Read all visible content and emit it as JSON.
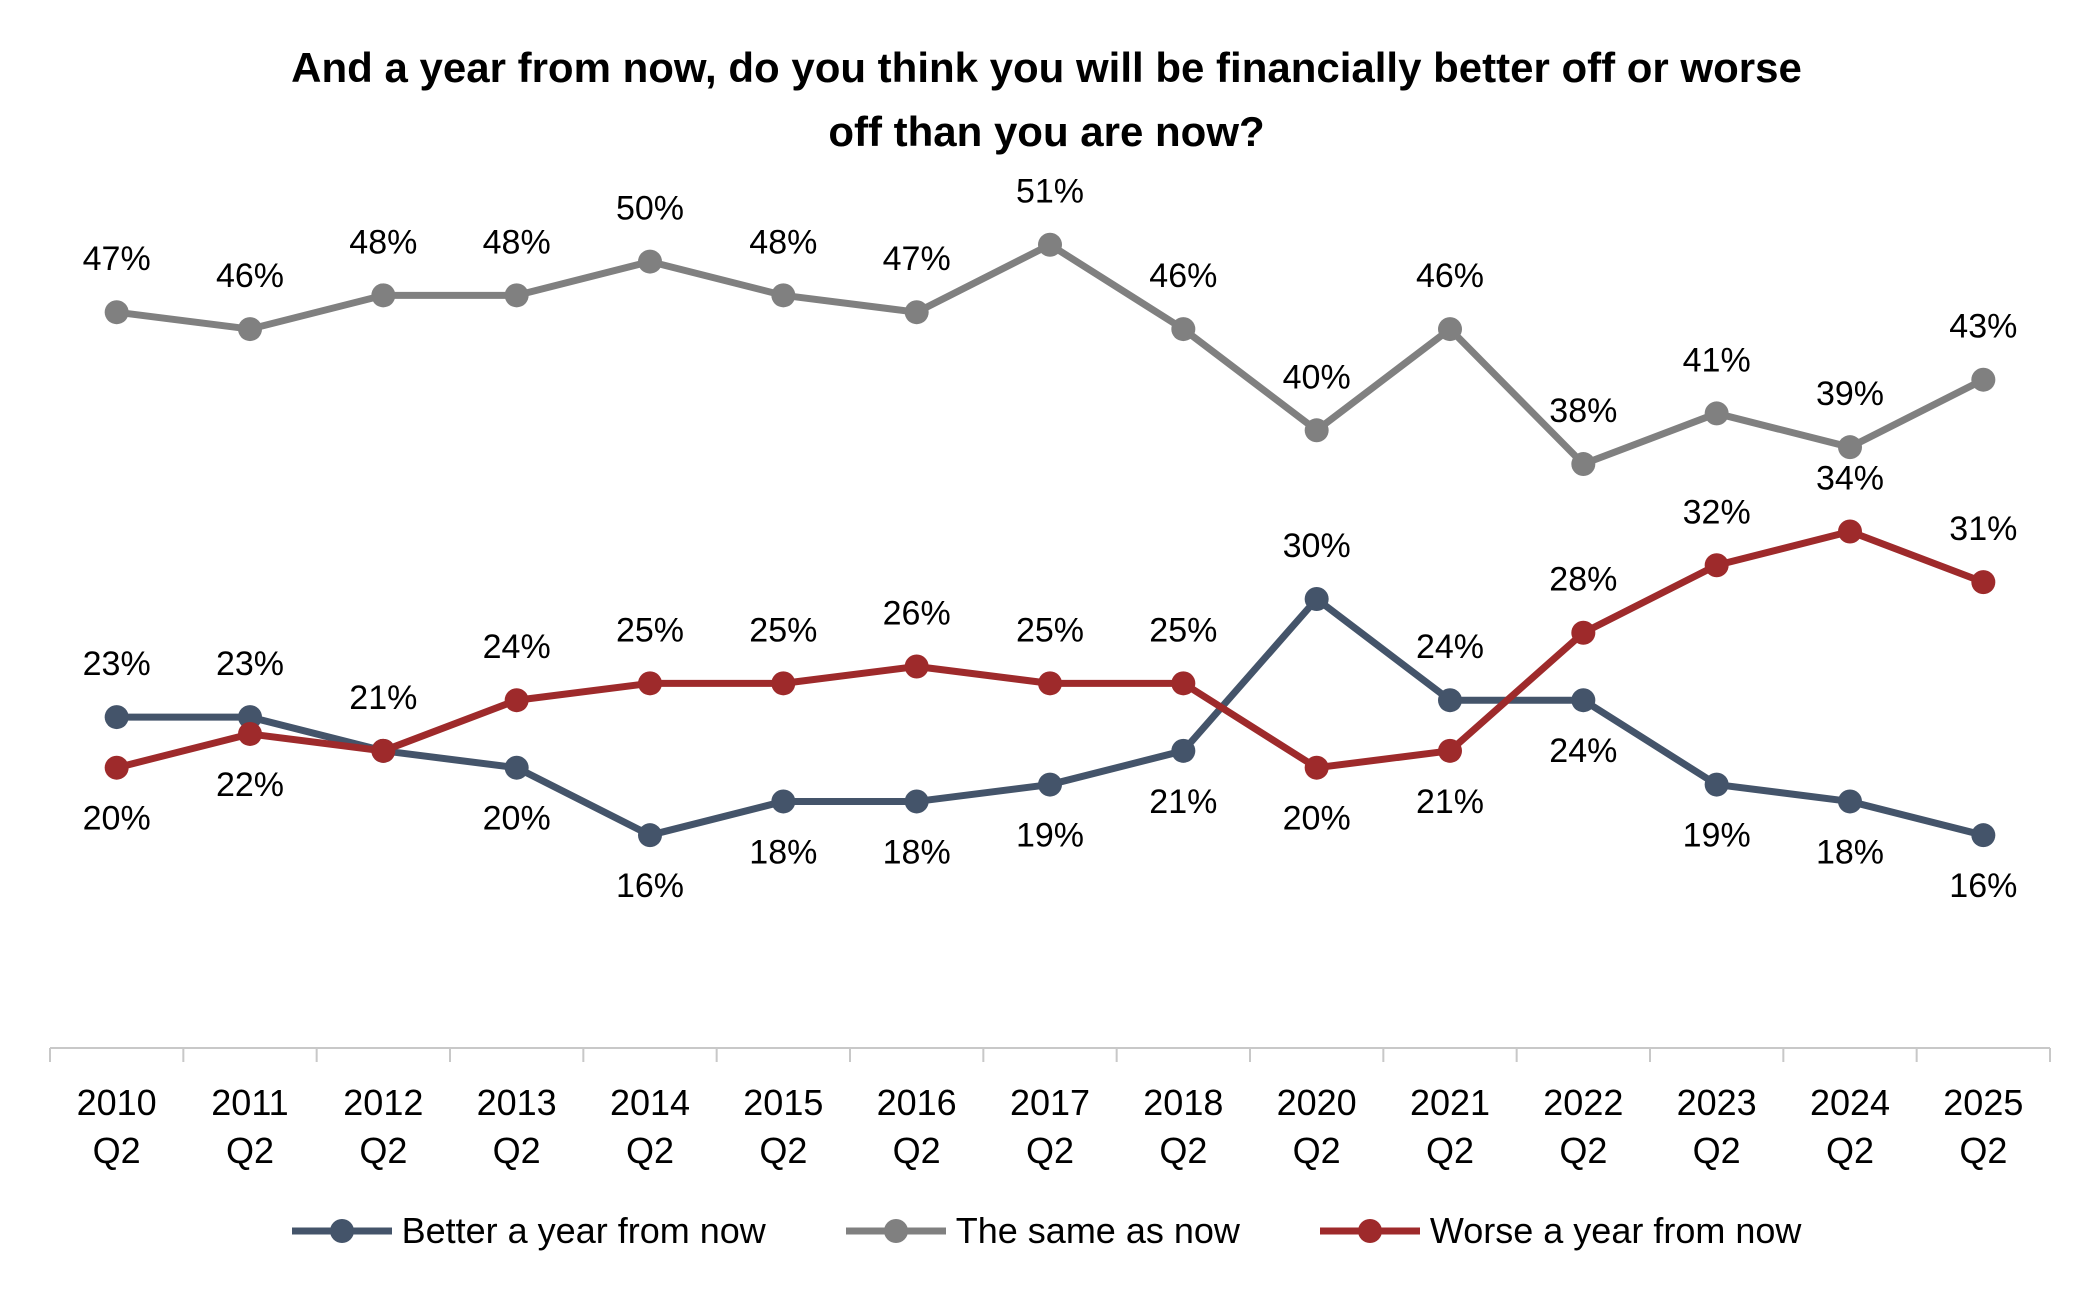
{
  "chart_data": {
    "type": "line",
    "title_line1": "And a year from now, do you think you will be financially better off or worse",
    "title_line2": "off than you are now?",
    "categories": [
      [
        "2010",
        "Q2"
      ],
      [
        "2011",
        "Q2"
      ],
      [
        "2012",
        "Q2"
      ],
      [
        "2013",
        "Q2"
      ],
      [
        "2014",
        "Q2"
      ],
      [
        "2015",
        "Q2"
      ],
      [
        "2016",
        "Q2"
      ],
      [
        "2017",
        "Q2"
      ],
      [
        "2018",
        "Q2"
      ],
      [
        "2020",
        "Q2"
      ],
      [
        "2021",
        "Q2"
      ],
      [
        "2022",
        "Q2"
      ],
      [
        "2023",
        "Q2"
      ],
      [
        "2024",
        "Q2"
      ],
      [
        "2025",
        "Q2"
      ]
    ],
    "ylim": [
      0,
      60
    ],
    "value_suffix": "%",
    "series": [
      {
        "name": "Better a year from now",
        "color": "#44546A",
        "values": [
          23,
          23,
          21,
          20,
          16,
          18,
          18,
          19,
          21,
          30,
          24,
          24,
          19,
          18,
          16
        ],
        "label_pos": [
          "above",
          "above",
          "above",
          "below",
          "below",
          "below",
          "below",
          "below",
          "below",
          "above",
          "above",
          "below",
          "below",
          "below",
          "below"
        ]
      },
      {
        "name": "The same as now",
        "color": "#808080",
        "values": [
          47,
          46,
          48,
          48,
          50,
          48,
          47,
          51,
          46,
          40,
          46,
          38,
          41,
          39,
          43
        ],
        "label_pos": [
          "above",
          "above",
          "above",
          "above",
          "above",
          "above",
          "above",
          "above",
          "above",
          "above",
          "above",
          "above",
          "above",
          "above",
          "above"
        ]
      },
      {
        "name": "Worse a year from now",
        "color": "#9E2A2B",
        "values": [
          20,
          22,
          21,
          24,
          25,
          25,
          26,
          25,
          25,
          20,
          21,
          28,
          32,
          34,
          31
        ],
        "label_pos": [
          "below",
          "below",
          "none",
          "above",
          "above",
          "above",
          "above",
          "above",
          "above",
          "below",
          "below",
          "above",
          "above",
          "above",
          "above"
        ]
      }
    ],
    "legend_position": "bottom",
    "grid": false
  }
}
